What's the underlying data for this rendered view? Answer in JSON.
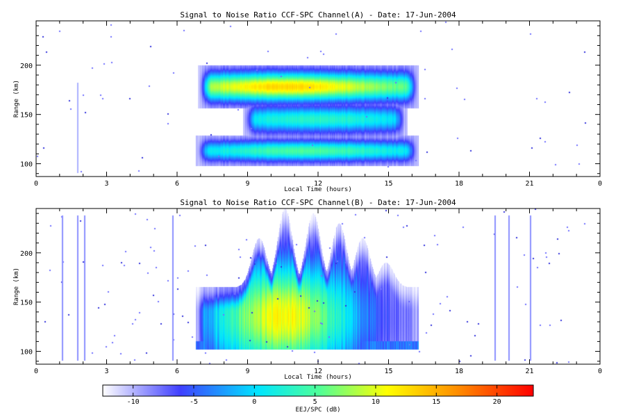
{
  "panels": [
    {
      "title": "Signal to Noise Ratio CCF-SPC Channel(A) - Date: 17-Jun-2004",
      "xlabel": "Local Time (hours)",
      "ylabel": "Range (km)",
      "xticks": [
        "0",
        "3",
        "6",
        "9",
        "12",
        "15",
        "18",
        "21",
        "0"
      ],
      "yticks": [
        "100",
        "150",
        "200"
      ]
    },
    {
      "title": "Signal to Noise Ratio CCF-SPC Channel(B) - Date: 17-Jun-2004",
      "xlabel": "Local Time (hours)",
      "ylabel": "Range (km)",
      "xticks": [
        "0",
        "3",
        "6",
        "9",
        "12",
        "15",
        "18",
        "21",
        "0"
      ],
      "yticks": [
        "100",
        "150",
        "200"
      ]
    }
  ],
  "colorbar": {
    "label": "EEJ/SPC (dB)",
    "ticks": [
      "-10",
      "-5",
      "0",
      "5",
      "10",
      "15",
      "20"
    ],
    "colors": [
      "#ffffff",
      "#3f3fff",
      "#00ffff",
      "#ffff00",
      "#ff0000"
    ]
  },
  "chart_data": [
    {
      "type": "heatmap",
      "title": "Signal to Noise Ratio CCF-SPC Channel(A) - Date: 17-Jun-2004",
      "xlabel": "Local Time (hours)",
      "ylabel": "Range (km)",
      "xlim": [
        0,
        24
      ],
      "ylim": [
        87,
        245
      ],
      "value_range_db": [
        -12.5,
        23
      ],
      "bands": [
        {
          "name": "upper echo band",
          "t_start": 6.9,
          "t_end": 16.3,
          "range_km": [
            160,
            195
          ],
          "center_km": 178,
          "peak_snr_db": 13,
          "peak_time_h": 10.7
        },
        {
          "name": "middle echo band",
          "t_start": 8.8,
          "t_end": 15.8,
          "range_km": [
            128,
            160
          ],
          "center_km": 145,
          "peak_snr_db": 3,
          "peak_time_h": 12
        },
        {
          "name": "lower echo band",
          "t_start": 6.8,
          "t_end": 16.3,
          "range_km": [
            100,
            125
          ],
          "center_km": 113,
          "peak_snr_db": 5,
          "peak_time_h": 11.5
        }
      ]
    },
    {
      "type": "heatmap",
      "title": "Signal to Noise Ratio CCF-SPC Channel(B) - Date: 17-Jun-2004",
      "xlabel": "Local Time (hours)",
      "ylabel": "Range (km)",
      "xlim": [
        0,
        24
      ],
      "ylim": [
        87,
        245
      ],
      "value_range_db": [
        -12.5,
        23
      ],
      "bands": [
        {
          "name": "main echo region",
          "t_start": 6.8,
          "t_end": 16.3,
          "range_km": [
            105,
            245
          ],
          "center_km": 135,
          "peak_snr_db": 11,
          "peak_time_h": 10.5
        }
      ],
      "plumes": [
        {
          "time_h": 9.5,
          "top_km": 215
        },
        {
          "time_h": 10.6,
          "top_km": 245
        },
        {
          "time_h": 11.8,
          "top_km": 240
        },
        {
          "time_h": 12.9,
          "top_km": 230
        },
        {
          "time_h": 13.9,
          "top_km": 215
        },
        {
          "time_h": 14.9,
          "top_km": 190
        }
      ]
    }
  ]
}
